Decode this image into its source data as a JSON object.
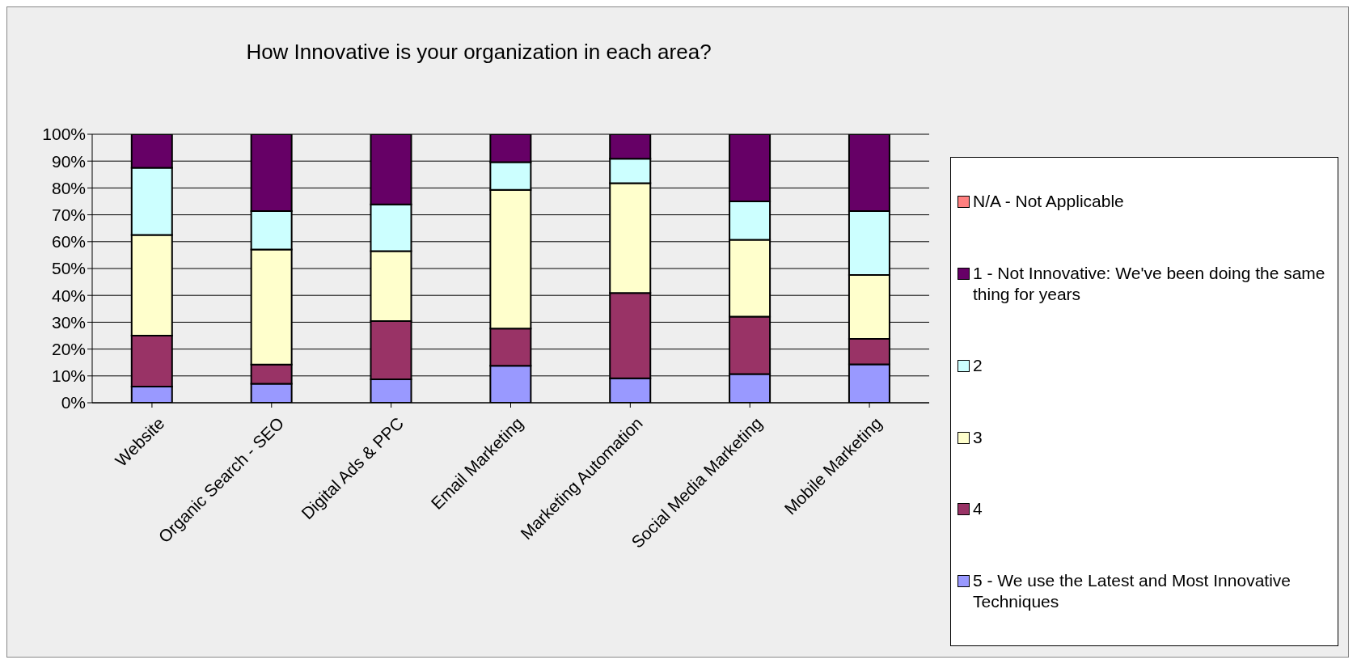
{
  "chart_data": {
    "type": "bar",
    "title": "How Innovative is your organization in each area?",
    "categories": [
      "Website",
      "Organic Search - SEO",
      "Digital Ads & PPC",
      "Email Marketing",
      "Marketing Automation",
      "Social Media Marketing",
      "Mobile Marketing"
    ],
    "stacked": true,
    "series": [
      {
        "name": "5 - We use the Latest and Most Innovative Techniques",
        "color": "#9999ff",
        "values": [
          6,
          7.1,
          8.7,
          13.8,
          9.1,
          10.7,
          14.3
        ]
      },
      {
        "name": "4",
        "color": "#993366",
        "values": [
          19,
          7.1,
          21.7,
          13.8,
          31.8,
          21.4,
          9.5
        ]
      },
      {
        "name": "3",
        "color": "#ffffcc",
        "values": [
          37.5,
          42.9,
          26.1,
          51.7,
          40.9,
          28.6,
          23.8
        ]
      },
      {
        "name": "2",
        "color": "#ccffff",
        "values": [
          25,
          14.3,
          17.4,
          10.3,
          9.1,
          14.3,
          23.8
        ]
      },
      {
        "name": "1 - Not Innovative: We've been doing the same thing for years",
        "color": "#660066",
        "values": [
          12.5,
          28.6,
          26.1,
          10.4,
          9.1,
          25,
          28.6
        ]
      },
      {
        "name": "N/A - Not Applicable",
        "color": "#ff8080",
        "values": [
          0,
          0,
          0,
          0,
          0,
          0,
          0
        ]
      }
    ],
    "ylim": [
      0,
      100
    ],
    "yticks": [
      {
        "value": 0,
        "label": "0%"
      },
      {
        "value": 10,
        "label": "10%"
      },
      {
        "value": 20,
        "label": "20%"
      },
      {
        "value": 30,
        "label": "30%"
      },
      {
        "value": 40,
        "label": "40%"
      },
      {
        "value": 50,
        "label": "50%"
      },
      {
        "value": 60,
        "label": "60%"
      },
      {
        "value": 70,
        "label": "70%"
      },
      {
        "value": 80,
        "label": "80%"
      },
      {
        "value": 90,
        "label": "90%"
      },
      {
        "value": 100,
        "label": "100%"
      }
    ],
    "grid": "y",
    "legend": "right"
  }
}
